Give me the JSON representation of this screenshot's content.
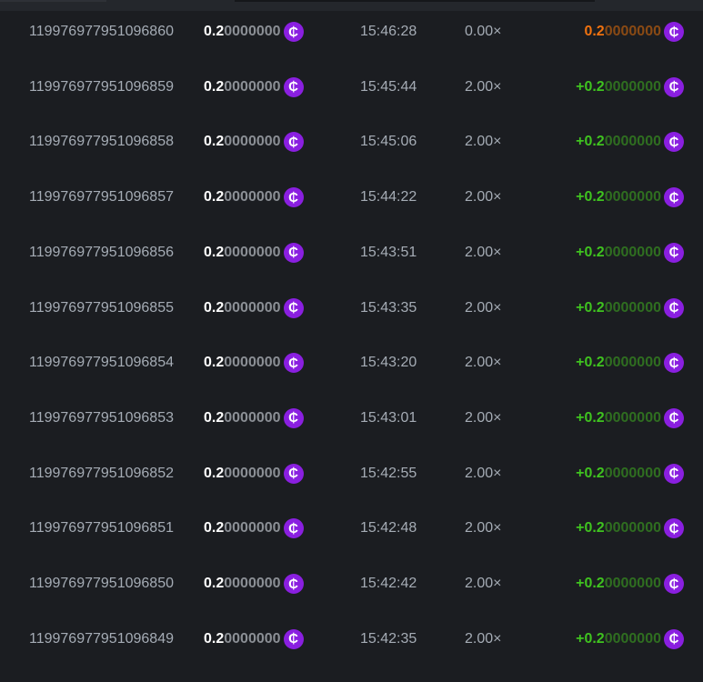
{
  "currency_icon": "cent-coin-icon",
  "colors": {
    "coin": "#8a1fe0",
    "win": "#3fc31f",
    "loss": "#f0720f"
  },
  "rows": [
    {
      "id": "119976977951096860",
      "amount_main": "0.2",
      "amount_rest": "0000000",
      "time": "15:46:28",
      "multiplier": "0.00×",
      "profit_main": "0.2",
      "profit_rest": "0000000",
      "result": "loss"
    },
    {
      "id": "119976977951096859",
      "amount_main": "0.2",
      "amount_rest": "0000000",
      "time": "15:45:44",
      "multiplier": "2.00×",
      "profit_main": "+0.2",
      "profit_rest": "0000000",
      "result": "win"
    },
    {
      "id": "119976977951096858",
      "amount_main": "0.2",
      "amount_rest": "0000000",
      "time": "15:45:06",
      "multiplier": "2.00×",
      "profit_main": "+0.2",
      "profit_rest": "0000000",
      "result": "win"
    },
    {
      "id": "119976977951096857",
      "amount_main": "0.2",
      "amount_rest": "0000000",
      "time": "15:44:22",
      "multiplier": "2.00×",
      "profit_main": "+0.2",
      "profit_rest": "0000000",
      "result": "win"
    },
    {
      "id": "119976977951096856",
      "amount_main": "0.2",
      "amount_rest": "0000000",
      "time": "15:43:51",
      "multiplier": "2.00×",
      "profit_main": "+0.2",
      "profit_rest": "0000000",
      "result": "win"
    },
    {
      "id": "119976977951096855",
      "amount_main": "0.2",
      "amount_rest": "0000000",
      "time": "15:43:35",
      "multiplier": "2.00×",
      "profit_main": "+0.2",
      "profit_rest": "0000000",
      "result": "win"
    },
    {
      "id": "119976977951096854",
      "amount_main": "0.2",
      "amount_rest": "0000000",
      "time": "15:43:20",
      "multiplier": "2.00×",
      "profit_main": "+0.2",
      "profit_rest": "0000000",
      "result": "win"
    },
    {
      "id": "119976977951096853",
      "amount_main": "0.2",
      "amount_rest": "0000000",
      "time": "15:43:01",
      "multiplier": "2.00×",
      "profit_main": "+0.2",
      "profit_rest": "0000000",
      "result": "win"
    },
    {
      "id": "119976977951096852",
      "amount_main": "0.2",
      "amount_rest": "0000000",
      "time": "15:42:55",
      "multiplier": "2.00×",
      "profit_main": "+0.2",
      "profit_rest": "0000000",
      "result": "win"
    },
    {
      "id": "119976977951096851",
      "amount_main": "0.2",
      "amount_rest": "0000000",
      "time": "15:42:48",
      "multiplier": "2.00×",
      "profit_main": "+0.2",
      "profit_rest": "0000000",
      "result": "win"
    },
    {
      "id": "119976977951096850",
      "amount_main": "0.2",
      "amount_rest": "0000000",
      "time": "15:42:42",
      "multiplier": "2.00×",
      "profit_main": "+0.2",
      "profit_rest": "0000000",
      "result": "win"
    },
    {
      "id": "119976977951096849",
      "amount_main": "0.2",
      "amount_rest": "0000000",
      "time": "15:42:35",
      "multiplier": "2.00×",
      "profit_main": "+0.2",
      "profit_rest": "0000000",
      "result": "win"
    }
  ]
}
